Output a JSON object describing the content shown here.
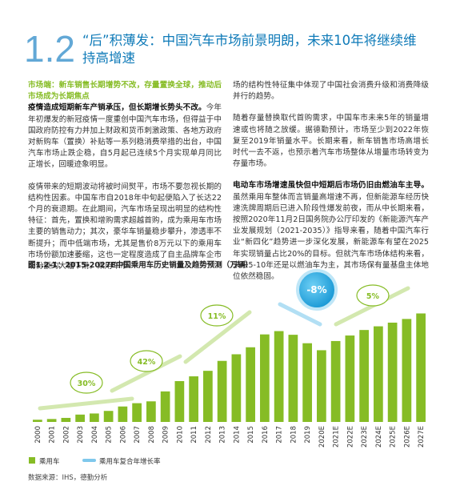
{
  "header": {
    "number": "1.2",
    "title": "“后”积薄发：中国汽车市场前景明朗，未来10年将继续维持高增速"
  },
  "left_column": {
    "heading": "市场端：新车销售长期增势不改，存量置换全球，推动后市场成为长期焦点",
    "paragraphs": [
      {
        "bold": "疫情造成短期新车产销承压，但长期增长势头不改。",
        "text": "今年年初爆发的新冠疫情一度重创中国汽车市场，但得益于中国政府防控有力并加上财政和货币刺激政策、各地方政府对新购车（置换）补贴等一系列稳消费举措的出台，中国汽车市场止跌企稳，自5月起已连续5个月实现单月同比正增长，回暖迹象明显。"
      },
      {
        "text": "疫情带来的短期波动将被时间熨平，市场不要忽视长期的结构性因素。中国车市自2018年中旬起便陷入了长达22个月的衰退期。在此期间，汽车市场呈现出明显的结构性特征：首先，置换和增购需求超越首购，成为乘用车市场主要的销售动力；其次，豪华车销量稳步攀升，渗透率不断提升；而中低端市场，尤其是售价8万元以下的乘用车市场份额加速萎缩，这也一定程度造成了自主品牌车企市场份额的大幅下滑。乘用车市"
      }
    ]
  },
  "right_column": {
    "paragraphs": [
      {
        "text": "场的结构性特征集中体现了中国社会消费升级和消费降级并行的趋势。"
      },
      {
        "text": "随着存量替换取代首购需求，中国车市未来5年的销量增速或也将随之放缓。据德勤预计，市场至少到2022年恢复至2019年销量水平。长期来看，新车销售市场高增长时代一去不返，也预示着汽车市场整体从增量市场转变为存量市场。"
      },
      {
        "bold": "电动车市场增速虽快但中短期后市场仍旧由燃油车主导。",
        "text": "虽然乘用车整体而言销量高增速不再，但新能源车经历快速洗牌周期后已进入阶段性爆发前夜，而从中长期来看，按照2020年11月2日国务院办公厅印发的《新能源汽车产业发展规划（2021-2035）》指导来看，随着中国汽车行业“新四化”趋势进一步深化发展，新能源车有望在2025年实现销量占比20%的目标。但就汽车市场体结构来看，未来5-10年还是以燃油车为主，其市场保有量基盘主体地位依然稳固。"
      }
    ]
  },
  "chart_data": {
    "type": "bar",
    "title": "图1.2-1：2015-2027E中国乘用车历史销量及趋势预测（万辆）",
    "categories": [
      "2000",
      "2001",
      "2002",
      "2003",
      "2004",
      "2005",
      "2006",
      "2007",
      "2008",
      "2009",
      "2010",
      "2011",
      "2012",
      "2013",
      "2014",
      "2015",
      "2016",
      "2017",
      "2018",
      "2019",
      "2020E",
      "2021E",
      "2022E",
      "2023E",
      "2024E",
      "2025E",
      "2026E",
      "2027E"
    ],
    "series": [
      {
        "name": "乘用车",
        "color": "#86bc25",
        "values": [
          0.6,
          0.8,
          1.1,
          2.0,
          2.3,
          3.0,
          4.2,
          5.1,
          5.6,
          8.3,
          11.1,
          12.4,
          13.9,
          16.6,
          18.4,
          20.3,
          23.8,
          24.7,
          23.7,
          21.4,
          19.5,
          22.0,
          23.5,
          25.0,
          26.0,
          27.0,
          28.0,
          29.5
        ]
      }
    ],
    "ylim": [
      0,
      32
    ],
    "annotation_legend": "乘用车复合年增长率",
    "annotations": [
      "30%",
      "42%",
      "11%",
      "-8%",
      "5%"
    ],
    "source": "数据来源：IHS，德勤分析"
  }
}
